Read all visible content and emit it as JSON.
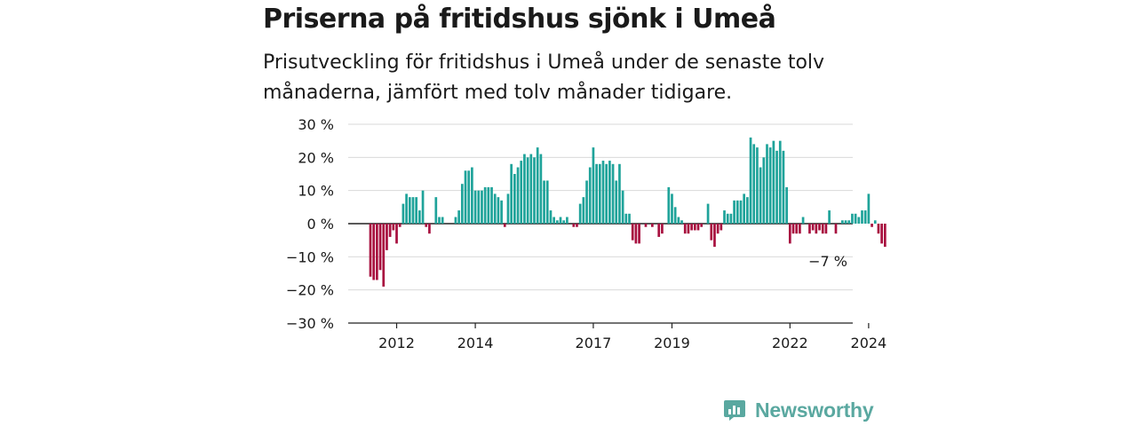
{
  "header": {
    "title": "Priserna på fritidshus sjönk i Umeå",
    "subtitle": "Prisutveckling för fritidshus i Umeå under de senaste tolv månaderna, jämfört med tolv månader tidigare."
  },
  "colors": {
    "positive": "#1fa39a",
    "negative": "#a8103f",
    "grid": "#d9d9d9",
    "zero_line": "#222222"
  },
  "brand": {
    "name": "Newsworthy",
    "icon": "newsworthy-logo-icon"
  },
  "chart_data": {
    "type": "bar",
    "title": "Priserna på fritidshus sjönk i Umeå",
    "ylim": [
      -30,
      30
    ],
    "yticks": [
      30,
      20,
      10,
      0,
      -10,
      -20,
      -30
    ],
    "ytick_labels": [
      "30 %",
      "20 %",
      "10 %",
      "0 %",
      "−10 %",
      "−20 %",
      "−30 %"
    ],
    "grid": true,
    "xtick_labels": [
      "2012",
      "2014",
      "2017",
      "2019",
      "2022",
      "2024"
    ],
    "xtick_years": [
      2012,
      2014,
      2017,
      2019,
      2022,
      2024
    ],
    "start": "2011-05",
    "end": "2025-03",
    "annotation": {
      "text": "−7 %",
      "value": -7
    },
    "values": [
      -16,
      -17,
      -17,
      -14,
      -19,
      -8,
      -4,
      -2,
      -6,
      -1,
      6,
      9,
      8,
      8,
      8,
      4,
      10,
      -1,
      -3,
      0,
      8,
      2,
      2,
      0,
      0,
      0,
      2,
      4,
      12,
      16,
      16,
      17,
      10,
      10,
      10,
      11,
      11,
      11,
      9,
      8,
      7,
      -1,
      9,
      18,
      15,
      17,
      19,
      21,
      20,
      21,
      20,
      23,
      21,
      13,
      13,
      4,
      2,
      1,
      2,
      1,
      2,
      0,
      -1,
      -1,
      6,
      8,
      13,
      17,
      23,
      18,
      18,
      19,
      18,
      19,
      18,
      13,
      18,
      10,
      3,
      3,
      -5,
      -6,
      -6,
      0,
      -1,
      0,
      -1,
      0,
      -4,
      -3,
      0,
      11,
      9,
      5,
      2,
      1,
      -3,
      -3,
      -2,
      -2,
      -2,
      -1,
      0,
      6,
      -5,
      -7,
      -3,
      -2,
      4,
      3,
      3,
      7,
      7,
      7,
      9,
      8,
      26,
      24,
      23,
      17,
      20,
      24,
      23,
      25,
      22,
      25,
      22,
      11,
      -6,
      -3,
      -3,
      -3,
      2,
      0,
      -3,
      -2,
      -3,
      -2,
      -3,
      -3,
      4,
      0,
      -3,
      0,
      1,
      1,
      1,
      3,
      3,
      2,
      4,
      4,
      9,
      -1,
      1,
      -3,
      -6,
      -7
    ]
  }
}
